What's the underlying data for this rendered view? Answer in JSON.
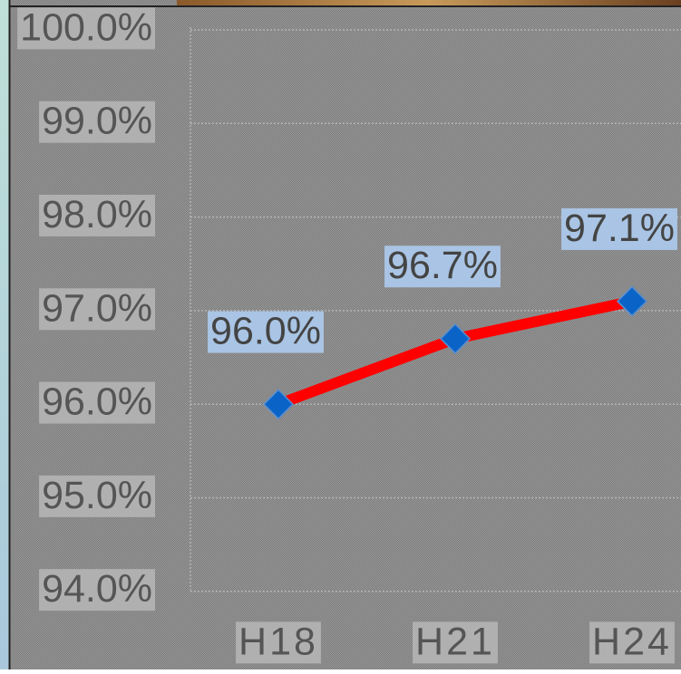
{
  "chart_data": {
    "type": "line",
    "categories": [
      "H18",
      "H21",
      "H24"
    ],
    "values": [
      96.0,
      96.7,
      97.1
    ],
    "value_labels": [
      "96.0%",
      "96.7%",
      "97.1%"
    ],
    "color": "#ff0000",
    "marker_color": "#0a64c8",
    "ylim": [
      93.8,
      100.25
    ],
    "yticks": [
      {
        "value": 94,
        "label": "94.0%"
      },
      {
        "value": 95,
        "label": "95.0%"
      },
      {
        "value": 96,
        "label": "96.0%"
      },
      {
        "value": 97,
        "label": "97.0%"
      },
      {
        "value": 98,
        "label": "98.0%"
      },
      {
        "value": 99,
        "label": "99.0%"
      },
      {
        "value": 100,
        "label": "100.0%"
      }
    ],
    "grid": true
  }
}
